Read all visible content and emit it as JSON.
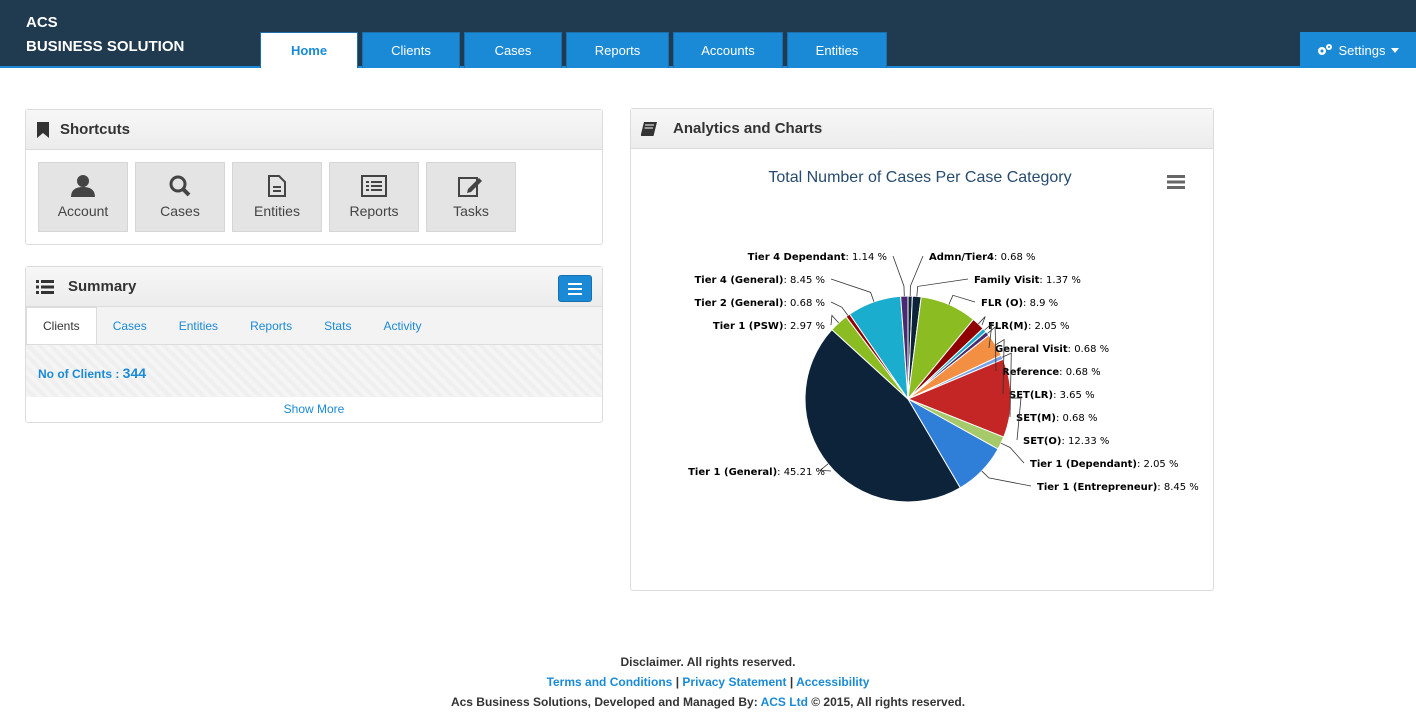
{
  "brand": {
    "line1": "ACS",
    "line2": "BUSINESS SOLUTION"
  },
  "nav": {
    "tabs": [
      "Home",
      "Clients",
      "Cases",
      "Reports",
      "Accounts",
      "Entities"
    ],
    "settings_label": "Settings"
  },
  "shortcuts": {
    "title": "Shortcuts",
    "items": [
      {
        "label": "Account",
        "icon": "user-icon"
      },
      {
        "label": "Cases",
        "icon": "search-icon"
      },
      {
        "label": "Entities",
        "icon": "document-icon"
      },
      {
        "label": "Reports",
        "icon": "list-icon"
      },
      {
        "label": "Tasks",
        "icon": "edit-icon"
      }
    ]
  },
  "summary": {
    "title": "Summary",
    "tabs": [
      "Clients",
      "Cases",
      "Entities",
      "Reports",
      "Stats",
      "Activity"
    ],
    "clients_label": "No of Clients : ",
    "clients_count": "344",
    "show_more": "Show More"
  },
  "analytics": {
    "title": "Analytics and Charts"
  },
  "chart_data": {
    "type": "pie",
    "title": "Total Number of Cases Per Case Category",
    "series": [
      {
        "name": "Admn/Tier4",
        "value": 0.68,
        "color": "#0d233a"
      },
      {
        "name": "Family Visit",
        "value": 1.37,
        "color": "#0d233a"
      },
      {
        "name": "FLR (O)",
        "value": 8.9,
        "color": "#8bbc21"
      },
      {
        "name": "FLR(M)",
        "value": 2.05,
        "color": "#910000"
      },
      {
        "name": "General Visit",
        "value": 0.68,
        "color": "#1aadce"
      },
      {
        "name": "Reference",
        "value": 0.68,
        "color": "#492970"
      },
      {
        "name": "SET(LR)",
        "value": 3.65,
        "color": "#f28f43"
      },
      {
        "name": "SET(M)",
        "value": 0.68,
        "color": "#77a1e5"
      },
      {
        "name": "SET(O)",
        "value": 12.33,
        "color": "#c42525"
      },
      {
        "name": "Tier 1 (Dependant)",
        "value": 2.05,
        "color": "#a6c96a"
      },
      {
        "name": "Tier 1 (Entrepreneur)",
        "value": 8.45,
        "color": "#2f7ed8"
      },
      {
        "name": "Tier 1 (General)",
        "value": 45.21,
        "color": "#0d233a"
      },
      {
        "name": "Tier 1 (PSW)",
        "value": 2.97,
        "color": "#8bbc21"
      },
      {
        "name": "Tier 2 (General)",
        "value": 0.68,
        "color": "#910000"
      },
      {
        "name": "Tier 4 (General)",
        "value": 8.45,
        "color": "#1aadce"
      },
      {
        "name": "Tier 4 Dependant",
        "value": 1.14,
        "color": "#492970"
      }
    ]
  },
  "footer": {
    "disclaimer": "Disclaimer. All rights reserved.",
    "links": [
      "Terms and Conditions",
      "Privacy Statement",
      "Accessibility"
    ],
    "separator": "|",
    "credit_prefix": "Acs Business Solutions, Developed and Managed By: ",
    "credit_link": "ACS Ltd",
    "credit_suffix": " © 2015, All rights reserved."
  }
}
